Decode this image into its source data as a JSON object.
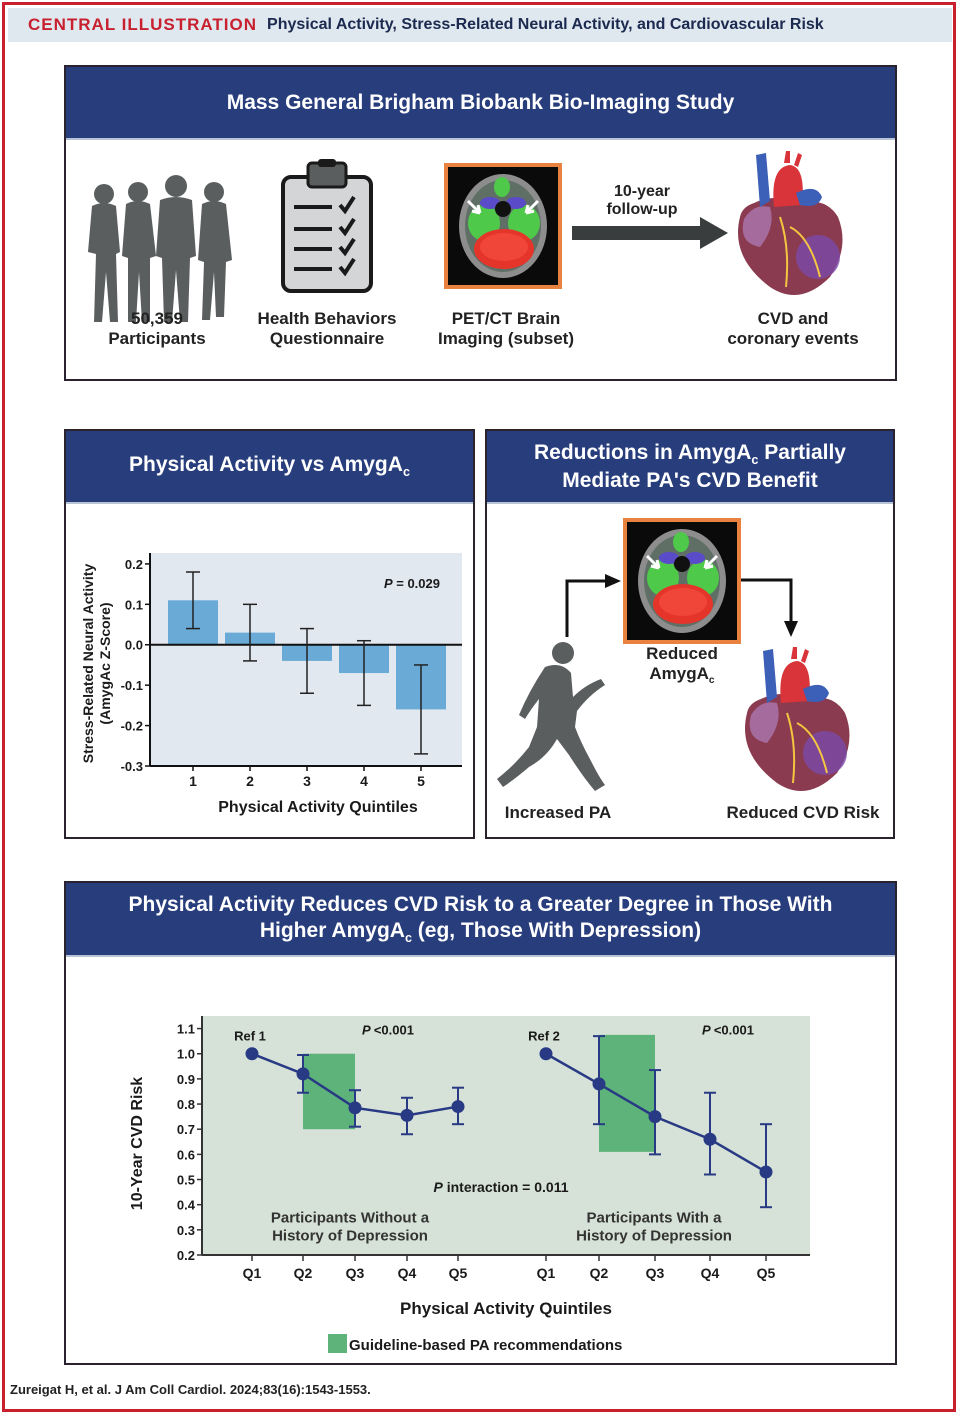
{
  "header": {
    "label": "CENTRAL ILLUSTRATION",
    "title": "Physical Activity, Stress-Related Neural Activity, and Cardiovascular Risk"
  },
  "study_panel": {
    "title": "Mass General Brigham Biobank Bio-Imaging Study",
    "participants": {
      "line1": "50,359",
      "line2": "Participants",
      "icon": "people-silhouettes-icon"
    },
    "questionnaire": {
      "line1": "Health Behaviors",
      "line2": "Questionnaire",
      "icon": "clipboard-checklist-icon"
    },
    "imaging": {
      "line1": "PET/CT Brain",
      "line2": "Imaging (subset)",
      "icon": "brain-scan-image"
    },
    "followup": {
      "line1": "10-year",
      "line2": "follow-up",
      "icon": "right-arrow-icon"
    },
    "outcome": {
      "line1": "CVD and",
      "line2": "coronary events",
      "icon": "heart-illustration"
    }
  },
  "bar_panel": {
    "title_main": "Physical Activity vs AmygA",
    "title_sub": "c"
  },
  "mediation_panel": {
    "title_line1_main": "Reductions in AmygA",
    "title_line1_sub": "c",
    "title_line1_end": " Partially",
    "title_line2": "Mediate PA's CVD Benefit",
    "runner_label": "Increased PA",
    "brain_label_line1": "Reduced",
    "brain_label_line2_main": "AmygA",
    "brain_label_line2_sub": "c",
    "heart_label": "Reduced CVD Risk"
  },
  "risk_panel": {
    "title_line1": "Physical Activity Reduces CVD Risk to a Greater Degree in Those With",
    "title_line2_main": "Higher AmygA",
    "title_line2_sub": "c",
    "title_line2_end": " (eg, Those With Depression)"
  },
  "citation": "Zureigat H, et al. J Am Coll Cardiol. 2024;83(16):1543-1553.",
  "colors": {
    "accent_red": "#c8202f",
    "title_navy": "#283d7c",
    "bar_blue": "#6aaad6",
    "line_navy": "#283a84",
    "guideline_green": "#5db37a",
    "plot_bg_green": "#d6e1d7",
    "plot_bg_blue": "#e2e8f0"
  },
  "chart_data": [
    {
      "type": "bar",
      "title": "Physical Activity vs AmygAc",
      "xlabel": "Physical Activity Quintiles",
      "ylabel": "Stress-Related Neural Activity (AmygAc Z-Score)",
      "ylabel_line1": "Stress-Related Neural Activity",
      "ylabel_line2": "(AmygAc Z-Score)",
      "categories": [
        "1",
        "2",
        "3",
        "4",
        "5"
      ],
      "values": [
        0.11,
        0.03,
        -0.04,
        -0.07,
        -0.16
      ],
      "error_low": [
        0.04,
        -0.04,
        -0.12,
        -0.15,
        -0.27
      ],
      "error_high": [
        0.18,
        0.1,
        0.04,
        0.01,
        -0.05
      ],
      "ylim": [
        -0.3,
        0.2
      ],
      "yticks": [
        0.2,
        0.1,
        0.0,
        -0.1,
        -0.2,
        -0.3
      ],
      "ytick_labels": [
        "0.2",
        "0.1",
        "0.0",
        "-0.1",
        "-0.2",
        "-0.3"
      ],
      "annotation": "P = 0.029",
      "annotation_p": "P",
      "annotation_rest": " = 0.029",
      "grid": false
    },
    {
      "type": "line",
      "ylabel": "10-Year CVD Risk",
      "xlabel": "Physical Activity Quintiles",
      "ylim": [
        0.2,
        1.1
      ],
      "yticks": [
        1.1,
        1.0,
        0.9,
        0.8,
        0.7,
        0.6,
        0.5,
        0.4,
        0.3,
        0.2
      ],
      "ytick_labels": [
        "1.1",
        "1.0",
        "0.9",
        "0.8",
        "0.7",
        "0.6",
        "0.5",
        "0.4",
        "0.3",
        "0.2"
      ],
      "categories": [
        "Q1",
        "Q2",
        "Q3",
        "Q4",
        "Q5"
      ],
      "series": [
        {
          "name": "Participants Without a History of Depression",
          "label_line1": "Participants Without a",
          "label_line2": "History of Depression",
          "ref_label": "Ref 1",
          "p_label": "<0.001",
          "values": [
            1.0,
            0.92,
            0.785,
            0.755,
            0.79
          ],
          "error_low": [
            null,
            0.845,
            0.71,
            0.68,
            0.72
          ],
          "error_high": [
            null,
            0.995,
            0.855,
            0.825,
            0.865
          ],
          "guideline_band": {
            "from": "Q2",
            "to": "Q3",
            "ymin": 0.7,
            "ymax": 1.0
          }
        },
        {
          "name": "Participants With a History of Depression",
          "label_line1": "Participants With a",
          "label_line2": "History of Depression",
          "ref_label": "Ref 2",
          "p_label": "<0.001",
          "values": [
            1.0,
            0.88,
            0.75,
            0.66,
            0.53
          ],
          "error_low": [
            null,
            0.72,
            0.6,
            0.52,
            0.39
          ],
          "error_high": [
            null,
            1.07,
            0.935,
            0.845,
            0.72
          ],
          "guideline_band": {
            "from": "Q2",
            "to": "Q3",
            "ymin": 0.61,
            "ymax": 1.075
          }
        }
      ],
      "interaction_annotation": "P interaction = 0.011",
      "interaction_p": "P",
      "interaction_rest": " interaction = 0.011",
      "legend": [
        {
          "label": "Guideline-based PA recommendations",
          "color": "#5db37a"
        }
      ],
      "legend_position": "bottom-center",
      "grid": false
    }
  ]
}
